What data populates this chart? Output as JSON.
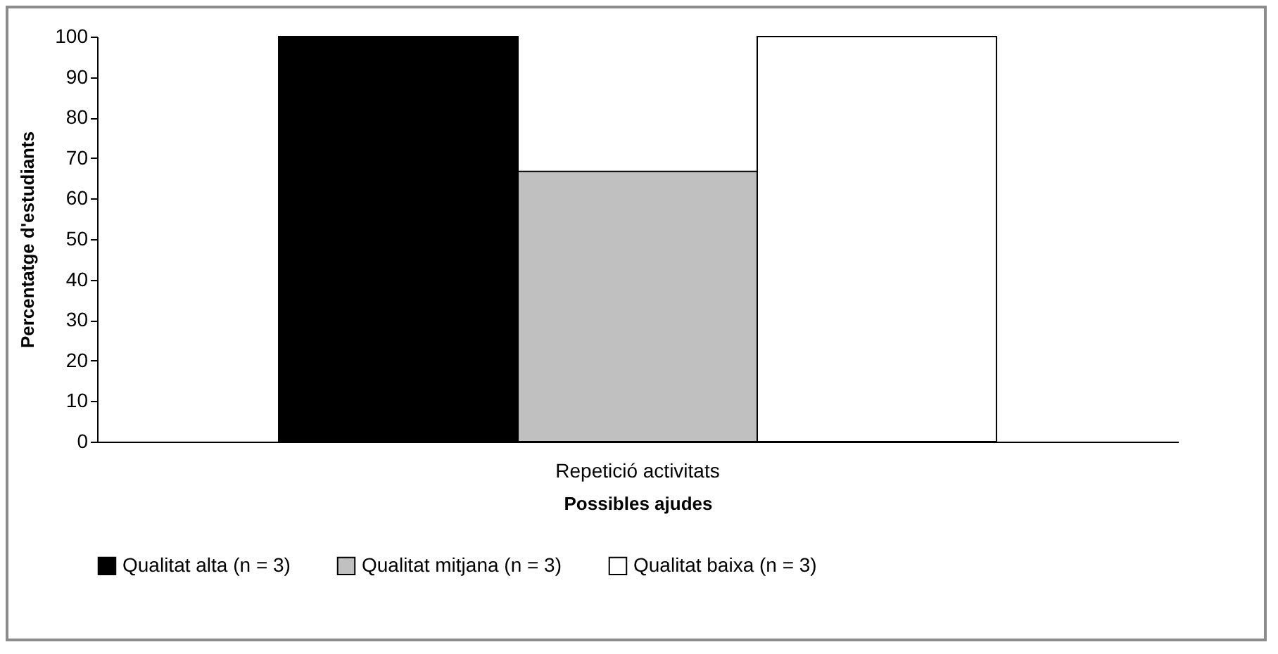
{
  "chart_data": {
    "type": "bar",
    "xlabel": "Possibles ajudes",
    "ylabel": "Percentatge d'estudiants",
    "categories": [
      "Repetició activitats"
    ],
    "series": [
      {
        "name": "Qualitat alta (n = 3)",
        "color": "#000000",
        "values": [
          100
        ]
      },
      {
        "name": "Qualitat mitjana (n = 3)",
        "color": "#c0c0c0",
        "values": [
          66.7
        ]
      },
      {
        "name": "Qualitat baixa (n = 3)",
        "color": "#ffffff",
        "values": [
          100
        ]
      }
    ],
    "ylim": [
      0,
      100
    ],
    "yticks": [
      0,
      10,
      20,
      30,
      40,
      50,
      60,
      70,
      80,
      90,
      100
    ],
    "legend": "bottom"
  }
}
